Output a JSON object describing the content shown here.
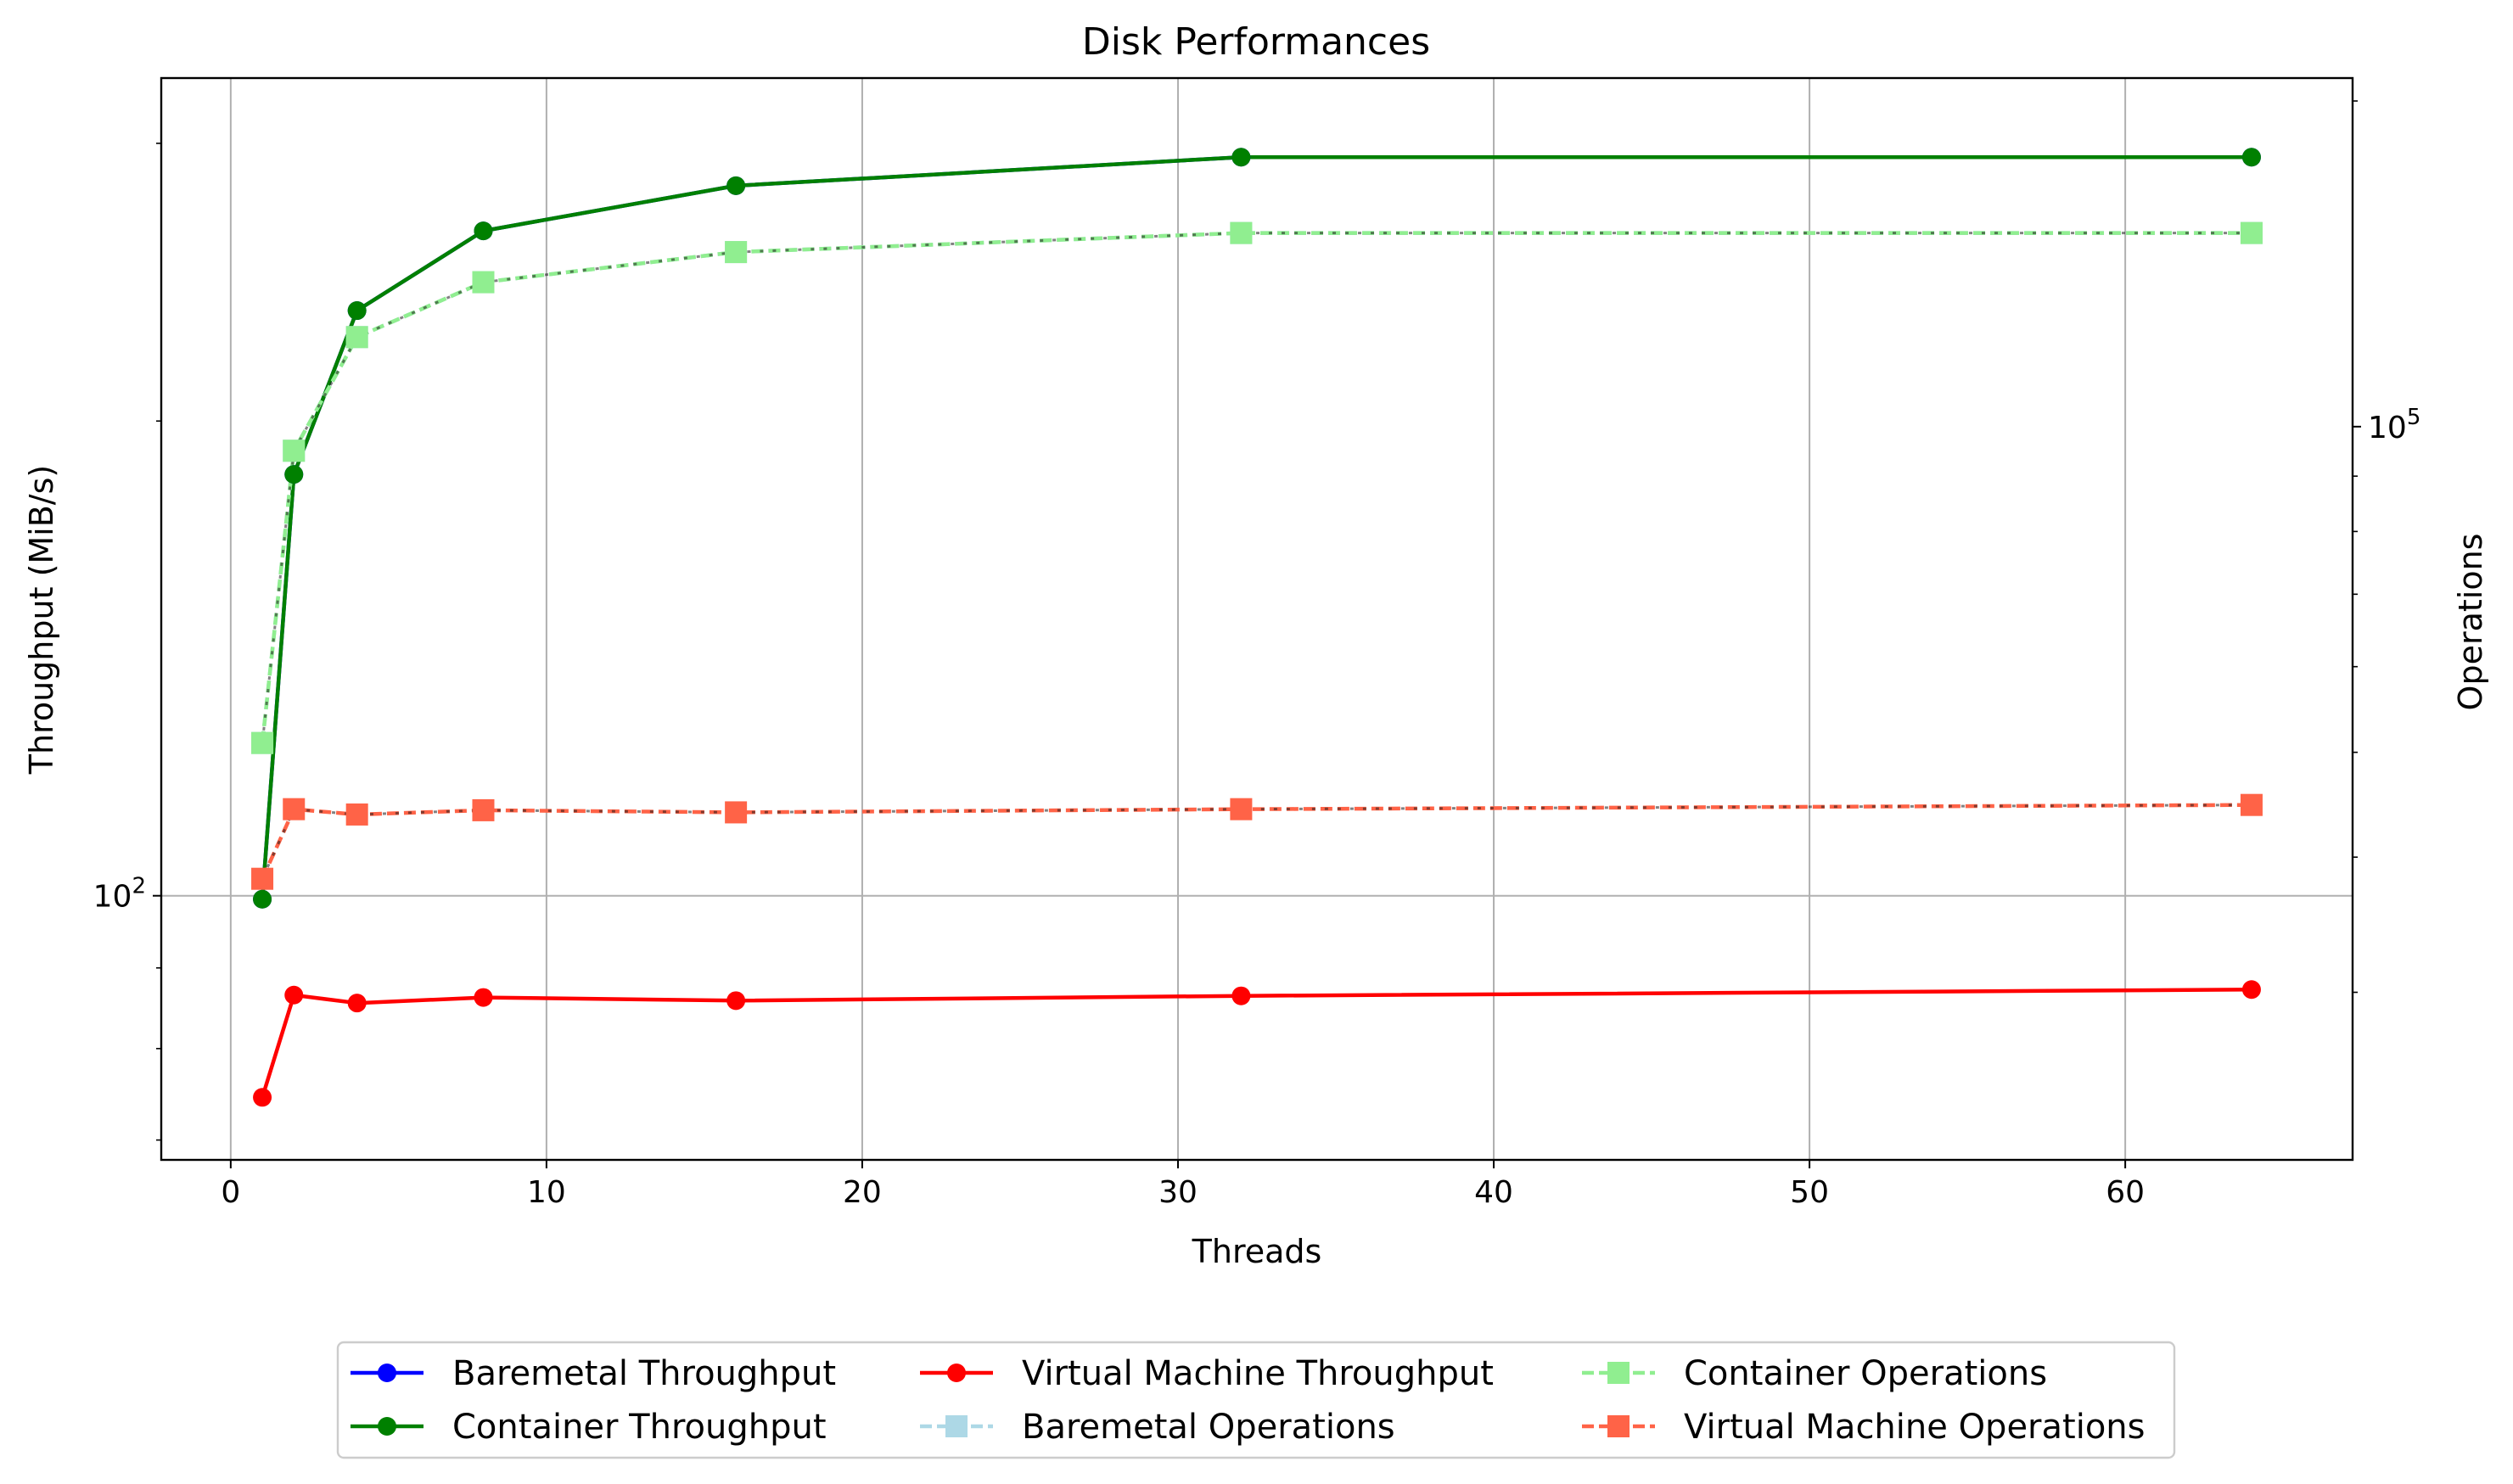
{
  "chart_data": {
    "type": "line",
    "title": "Disk Performances",
    "xlabel": "Threads",
    "ylabel": "Throughput (MiB/s)",
    "y2label": "Operations",
    "xlim": [
      -2.2,
      67.2
    ],
    "ylim": [
      68,
      330
    ],
    "y2lim": [
      21000,
      210000
    ],
    "yscale": "log",
    "y2scale": "log",
    "grid": true,
    "legend_position": "below-center",
    "x_ticks": [
      0,
      10,
      20,
      30,
      40,
      50,
      60
    ],
    "x_tick_labels": [
      "0",
      "10",
      "20",
      "30",
      "40",
      "50",
      "60"
    ],
    "y_ticks": [
      {
        "value": 100,
        "base": "10",
        "exp": "2"
      }
    ],
    "y2_ticks": [
      {
        "value": 100000,
        "base": "10",
        "exp": "5"
      }
    ],
    "x": [
      1,
      2,
      4,
      8,
      16,
      32,
      64
    ],
    "series": [
      {
        "name": "Baremetal Throughput",
        "axis": "left",
        "color": "#0000ff",
        "marker": "circle",
        "style": "solid",
        "values": [
          99.5,
          185,
          235,
          264,
          282,
          294,
          294
        ]
      },
      {
        "name": "Container Throughput",
        "axis": "left",
        "color": "#008000",
        "marker": "circle",
        "style": "solid",
        "values": [
          99.5,
          185,
          235,
          264,
          282,
          294,
          294
        ]
      },
      {
        "name": "Virtual Machine Throughput",
        "axis": "left",
        "color": "#ff0000",
        "marker": "circle",
        "style": "solid",
        "values": [
          74.5,
          86.5,
          85.5,
          86.2,
          85.8,
          86.4,
          87.2
        ]
      },
      {
        "name": "Baremetal Operations",
        "axis": "right",
        "color": "#add8e6",
        "marker": "square",
        "style": "dashed",
        "values": [
          51000,
          95000,
          121000,
          136000,
          145000,
          151000,
          151000
        ]
      },
      {
        "name": "Container Operations",
        "axis": "right",
        "color": "#90ee90",
        "marker": "square",
        "style": "dashed",
        "values": [
          51000,
          95000,
          121000,
          136000,
          145000,
          151000,
          151000
        ]
      },
      {
        "name": "Virtual Machine Operations",
        "axis": "right",
        "color": "#ff6347",
        "marker": "square",
        "style": "dashed",
        "values": [
          38200,
          44300,
          43800,
          44200,
          44000,
          44300,
          44700
        ]
      }
    ],
    "legend_order": [
      0,
      1,
      2,
      3,
      4,
      5
    ],
    "colors": {
      "grid": "#b0b0b0",
      "axes": "#000000",
      "overlay_dots": "#1a1a1a"
    }
  }
}
